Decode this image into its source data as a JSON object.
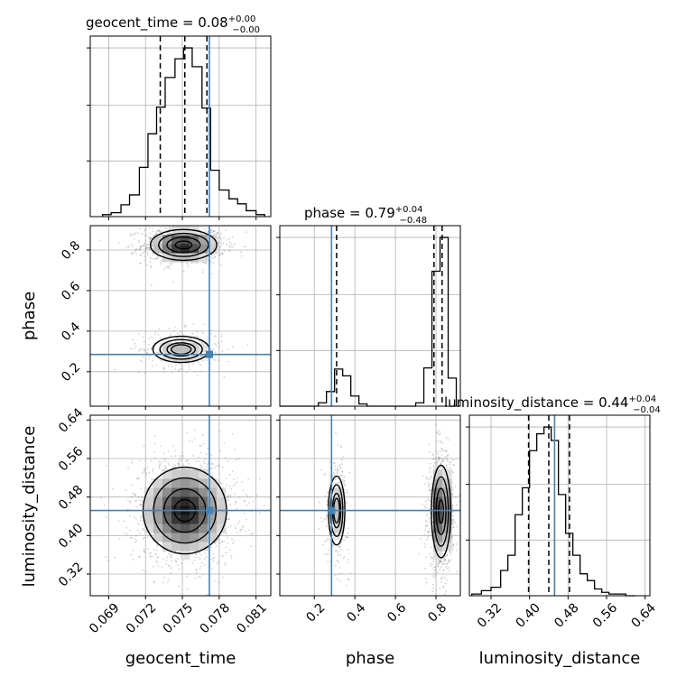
{
  "colors": {
    "truth": "#4682b4",
    "hist": "#000000",
    "grid": "#b0b0b0",
    "density_dark": "#000000",
    "density_light": "#ffffff",
    "scatter": "#7f7f7f"
  },
  "chart_data": {
    "type": "corner",
    "parameters": [
      "geocent_time",
      "phase",
      "luminosity_distance"
    ],
    "truths": {
      "geocent_time": 0.0772,
      "phase": 0.285,
      "luminosity_distance": 0.452
    },
    "grid": true,
    "titles": {
      "geocent_time": {
        "label": "geocent_time",
        "median": "0.08",
        "plus": "+0.00",
        "minus": "−0.00"
      },
      "phase": {
        "label": "phase",
        "median": "0.79",
        "plus": "+0.04",
        "minus": "−0.48"
      },
      "luminosity_distance": {
        "label": "luminosity_distance",
        "median": "0.44",
        "plus": "+0.04",
        "minus": "−0.04"
      }
    },
    "axes": {
      "geocent_time": {
        "range": [
          0.0675,
          0.0822
        ],
        "ticks": [
          0.069,
          0.072,
          0.075,
          0.078,
          0.081
        ],
        "tick_labels": [
          "0.069",
          "0.072",
          "0.075",
          "0.078",
          "0.081"
        ]
      },
      "phase": {
        "range": [
          0.03,
          0.92
        ],
        "ticks": [
          0.2,
          0.4,
          0.6,
          0.8
        ],
        "tick_labels": [
          "0.2",
          "0.4",
          "0.6",
          "0.8"
        ]
      },
      "luminosity_distance": {
        "range": [
          0.275,
          0.65
        ],
        "ticks": [
          0.32,
          0.4,
          0.48,
          0.56,
          0.64
        ],
        "tick_labels": [
          "0.32",
          "0.40",
          "0.48",
          "0.56",
          "0.64"
        ]
      }
    },
    "histograms": {
      "geocent_time": {
        "quantiles": [
          0.0732,
          0.0752,
          0.077
        ],
        "edges": [
          0.0685,
          0.0692,
          0.07,
          0.0707,
          0.0715,
          0.0722,
          0.0729,
          0.0736,
          0.0744,
          0.0751,
          0.0758,
          0.0766,
          0.0773,
          0.078,
          0.0788,
          0.0795,
          0.0802,
          0.081,
          0.0817
        ],
        "counts": [
          2,
          4,
          12,
          22,
          50,
          84,
          111,
          141,
          160,
          171,
          152,
          110,
          47,
          27,
          18,
          13,
          6,
          2
        ]
      },
      "phase": {
        "quantiles": [
          0.31,
          0.79,
          0.83
        ],
        "edges": [
          0.03,
          0.22,
          0.26,
          0.3,
          0.34,
          0.38,
          0.42,
          0.46,
          0.7,
          0.74,
          0.78,
          0.82,
          0.86,
          0.9
        ],
        "counts": [
          0,
          3,
          13,
          33,
          27,
          9,
          2,
          0,
          3,
          34,
          120,
          150,
          25
        ]
      },
      "luminosity_distance": {
        "quantiles": [
          0.398,
          0.44,
          0.483
        ],
        "edges": [
          0.28,
          0.3,
          0.32,
          0.34,
          0.355,
          0.37,
          0.385,
          0.4,
          0.415,
          0.43,
          0.445,
          0.46,
          0.475,
          0.49,
          0.505,
          0.52,
          0.535,
          0.55,
          0.565,
          0.58,
          0.6,
          0.62
        ],
        "counts": [
          1,
          3,
          5,
          15,
          24,
          48,
          64,
          86,
          96,
          100,
          92,
          60,
          37,
          24,
          13,
          9,
          4,
          2,
          1,
          1,
          0
        ]
      }
    },
    "densities": [
      {
        "x": "geocent_time",
        "y": "phase",
        "modes": [
          {
            "cx": 0.0751,
            "cy": 0.825,
            "sx": 0.00135,
            "sy": 0.038,
            "w": 1.0
          },
          {
            "cx": 0.0749,
            "cy": 0.31,
            "sx": 0.00135,
            "sy": 0.038,
            "w": 0.3
          }
        ]
      },
      {
        "x": "geocent_time",
        "y": "luminosity_distance",
        "modes": [
          {
            "cx": 0.0752,
            "cy": 0.452,
            "sx": 0.0017,
            "sy": 0.045,
            "w": 1.0
          }
        ]
      },
      {
        "x": "phase",
        "y": "luminosity_distance",
        "modes": [
          {
            "cx": 0.825,
            "cy": 0.45,
            "sx": 0.024,
            "sy": 0.048,
            "w": 1.0
          },
          {
            "cx": 0.31,
            "cy": 0.452,
            "sx": 0.024,
            "sy": 0.042,
            "w": 0.3
          }
        ]
      }
    ]
  }
}
